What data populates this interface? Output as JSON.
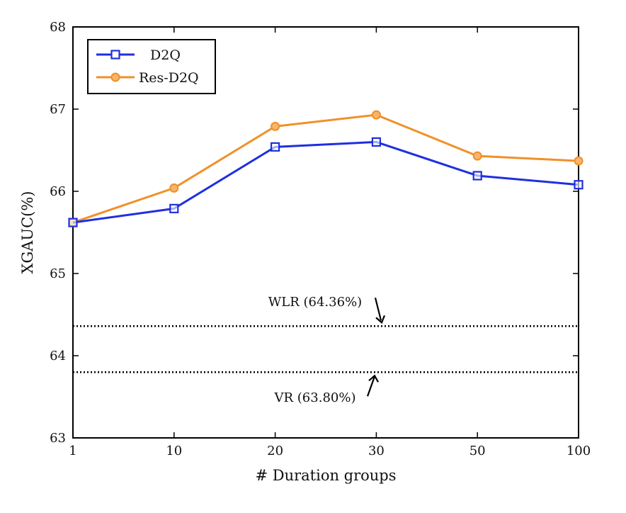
{
  "chart_data": {
    "type": "line",
    "title": "",
    "xlabel": "# Duration groups",
    "ylabel": "XGAUC(%)",
    "categories": [
      "1",
      "10",
      "20",
      "30",
      "50",
      "100"
    ],
    "ylim": [
      63,
      68
    ],
    "yticks": [
      "63",
      "64",
      "65",
      "66",
      "67",
      "68"
    ],
    "grid": false,
    "legend_position": "top-left",
    "series": [
      {
        "name": "D2Q",
        "color": "#1f2fe0",
        "marker": "square",
        "values": [
          65.62,
          65.79,
          66.54,
          66.6,
          66.19,
          66.08
        ]
      },
      {
        "name": "Res-D2Q",
        "color": "#f0902a",
        "marker": "circle",
        "values": [
          65.62,
          66.04,
          66.79,
          66.93,
          66.43,
          66.37
        ]
      }
    ],
    "reference_lines": [
      {
        "name": "WLR",
        "label": "WLR (64.36%)",
        "value": 64.36,
        "style": "dotted",
        "color": "#000000"
      },
      {
        "name": "VR",
        "label": "VR (63.80%)",
        "value": 63.8,
        "style": "dotted",
        "color": "#000000"
      }
    ]
  }
}
